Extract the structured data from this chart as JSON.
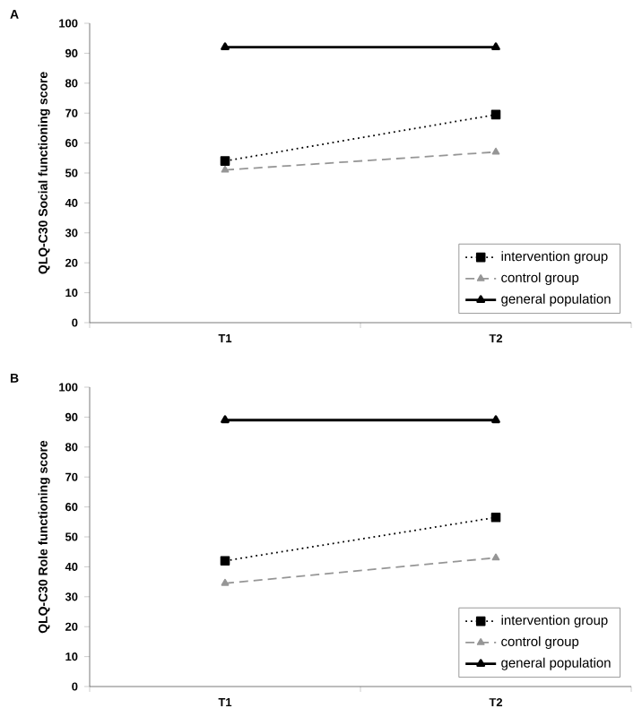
{
  "chart_data": [
    {
      "type": "line",
      "title": "A",
      "ylabel": "QLQ-C30 Social functioning score",
      "categories": [
        "T1",
        "T2"
      ],
      "ylim": [
        0,
        100
      ],
      "yticks": [
        0,
        10,
        20,
        30,
        40,
        50,
        60,
        70,
        80,
        90,
        100
      ],
      "legend": "bottom right",
      "series": [
        {
          "name": "intervention group",
          "color": "#000000",
          "values": [
            54,
            69.5
          ],
          "marker": "square",
          "line_style": "dotted"
        },
        {
          "name": "control group",
          "color": "#969696",
          "values": [
            51,
            57
          ],
          "marker": "triangle",
          "line_style": "dashed"
        },
        {
          "name": "general population",
          "color": "#000000",
          "values": [
            92,
            92
          ],
          "marker": "triangle",
          "line_style": "solid"
        }
      ]
    },
    {
      "type": "line",
      "title": "B",
      "ylabel": "QLQ-C30 Role functioning score",
      "categories": [
        "T1",
        "T2"
      ],
      "ylim": [
        0,
        100
      ],
      "yticks": [
        0,
        10,
        20,
        30,
        40,
        50,
        60,
        70,
        80,
        90,
        100
      ],
      "legend": "bottom right",
      "series": [
        {
          "name": "intervention group",
          "color": "#000000",
          "values": [
            42,
            56.5
          ],
          "marker": "square",
          "line_style": "dotted"
        },
        {
          "name": "control group",
          "color": "#969696",
          "values": [
            34.5,
            43
          ],
          "marker": "triangle",
          "line_style": "dashed"
        },
        {
          "name": "general population",
          "color": "#000000",
          "values": [
            89,
            89
          ],
          "marker": "triangle",
          "line_style": "solid"
        }
      ]
    }
  ]
}
